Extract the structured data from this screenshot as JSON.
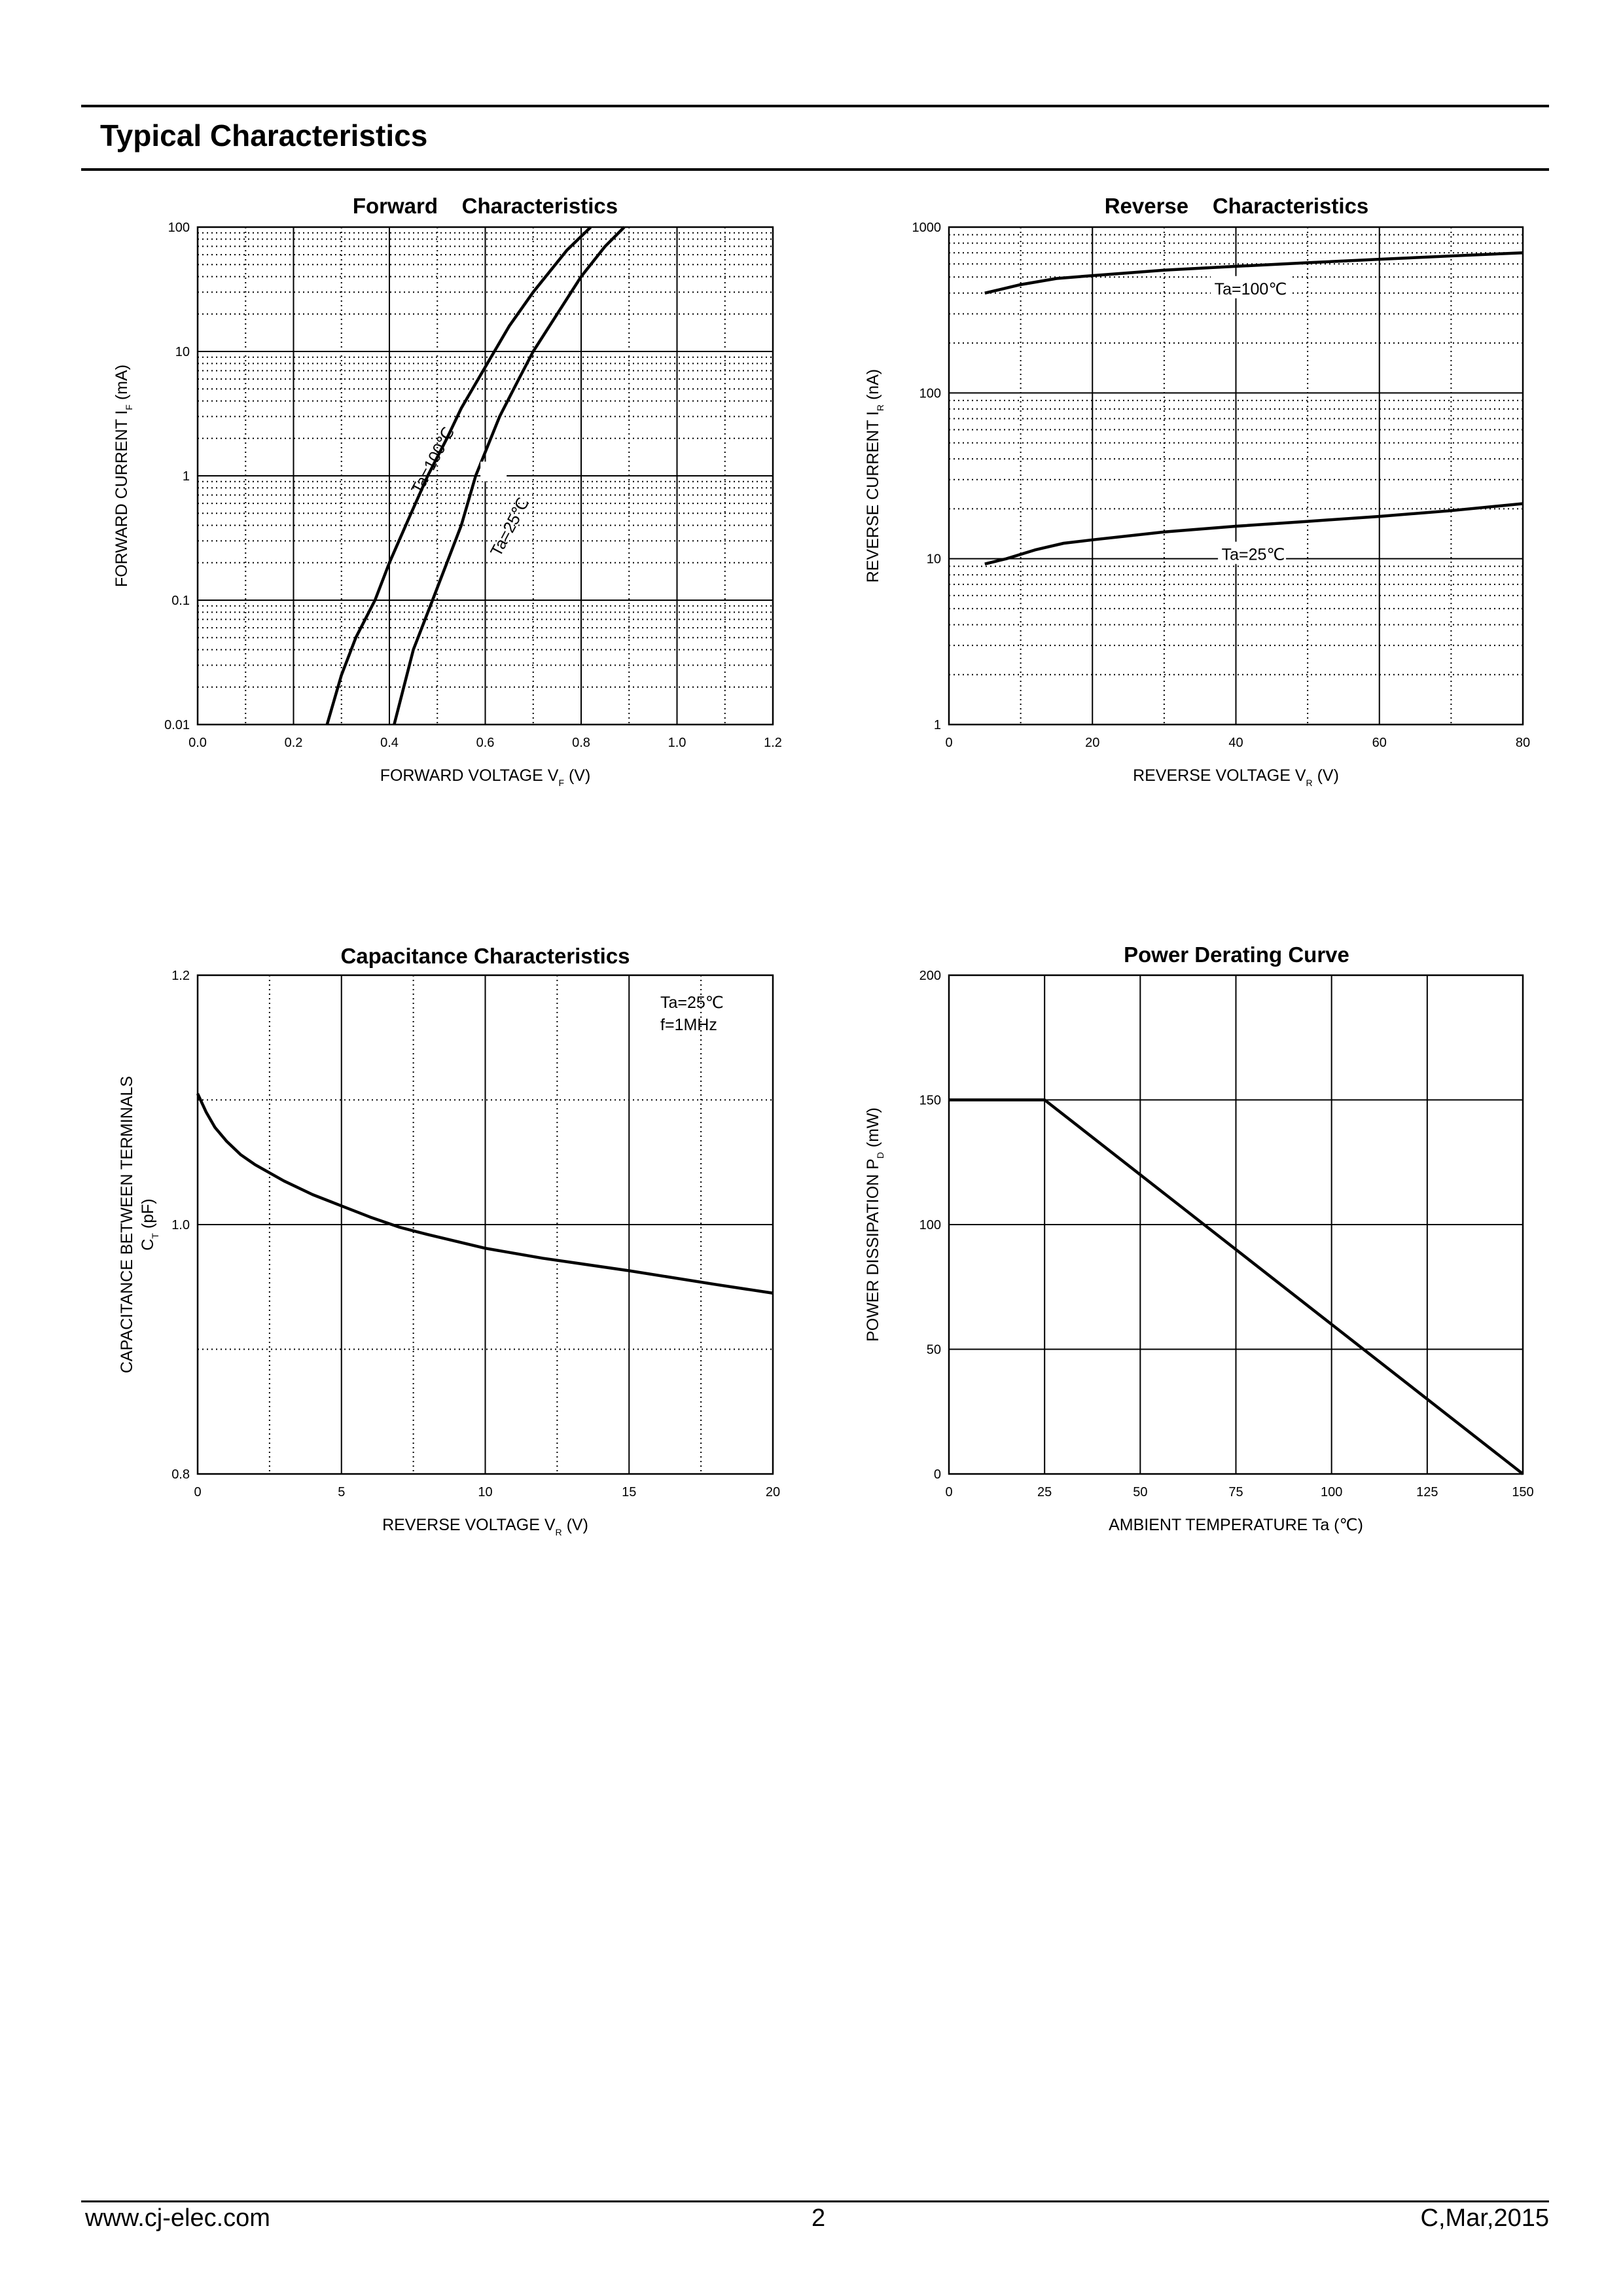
{
  "header": {
    "title": "Typical Characteristics"
  },
  "footer": {
    "website": "www.cj-elec.com",
    "page": "2",
    "revision": "C,Mar,2015"
  },
  "chart_data": [
    {
      "id": "forward",
      "type": "line",
      "title": "Forward    Characteristics",
      "xlabel": "FORWARD VOLTAGE",
      "xlabel_sym": "V",
      "xlabel_sub": "F",
      "xlabel_unit": "(V)",
      "ylabel": "FORWARD CURRENT",
      "ylabel_sym": "I",
      "ylabel_sub": "F",
      "ylabel_unit": "(mA)",
      "xlim": [
        0,
        1.2
      ],
      "ylim": [
        0.01,
        100
      ],
      "yscale": "log",
      "xticks": [
        "0.0",
        "0.2",
        "0.4",
        "0.6",
        "0.8",
        "1.0",
        "1.2"
      ],
      "yticks": [
        "0.01",
        "0.1",
        "1",
        "10",
        "100"
      ],
      "grid": true,
      "series": [
        {
          "name": "Ta=100℃",
          "x": [
            0.27,
            0.3,
            0.33,
            0.37,
            0.4,
            0.44,
            0.48,
            0.52,
            0.55,
            0.6,
            0.65,
            0.7,
            0.77,
            0.82
          ],
          "y": [
            0.01,
            0.025,
            0.05,
            0.1,
            0.2,
            0.45,
            1,
            2,
            3.5,
            7.5,
            16,
            30,
            65,
            100
          ]
        },
        {
          "name": "Ta=25℃",
          "x": [
            0.41,
            0.43,
            0.45,
            0.49,
            0.52,
            0.55,
            0.58,
            0.63,
            0.67,
            0.7,
            0.75,
            0.8,
            0.85,
            0.89
          ],
          "y": [
            0.01,
            0.02,
            0.04,
            0.1,
            0.2,
            0.4,
            1,
            3,
            6,
            10,
            20,
            40,
            70,
            100
          ]
        }
      ]
    },
    {
      "id": "reverse",
      "type": "line",
      "title": "Reverse    Characteristics",
      "xlabel": "REVERSE VOLTAGE",
      "xlabel_sym": "V",
      "xlabel_sub": "R",
      "xlabel_unit": "(V)",
      "ylabel": "REVERSE CURRENT",
      "ylabel_sym": "I",
      "ylabel_sub": "R",
      "ylabel_unit": "(nA)",
      "xlim": [
        0,
        80
      ],
      "ylim": [
        1,
        1000
      ],
      "yscale": "log",
      "xticks": [
        "0",
        "20",
        "40",
        "60",
        "80"
      ],
      "yticks": [
        "1",
        "10",
        "100",
        "1000"
      ],
      "grid": true,
      "series": [
        {
          "name": "Ta=100℃",
          "x": [
            5,
            10,
            15,
            20,
            30,
            40,
            50,
            60,
            70,
            80
          ],
          "y": [
            400,
            450,
            490,
            510,
            550,
            580,
            610,
            640,
            670,
            700
          ]
        },
        {
          "name": "Ta=25℃",
          "x": [
            5,
            8,
            12,
            16,
            20,
            30,
            40,
            50,
            60,
            70,
            80
          ],
          "y": [
            9.3,
            10,
            11.3,
            12.4,
            13,
            14.5,
            15.7,
            16.8,
            18,
            19.5,
            21.5
          ]
        }
      ]
    },
    {
      "id": "capacitance",
      "type": "line",
      "title": "Capacitance Characteristics",
      "xlabel": "REVERSE VOLTAGE",
      "xlabel_sym": "V",
      "xlabel_sub": "R",
      "xlabel_unit": "(V)",
      "ylabel": "CAPACITANCE BETWEEN TERMINALS",
      "ylabel_sym": "C",
      "ylabel_sub": "T",
      "ylabel_unit": "(pF)",
      "xlim": [
        0,
        20
      ],
      "ylim": [
        0.8,
        1.2
      ],
      "yscale": "linear",
      "xticks": [
        "0",
        "5",
        "10",
        "15",
        "20"
      ],
      "yticks": [
        "0.8",
        "1.0",
        "1.2"
      ],
      "grid": true,
      "annotations": [
        "Ta=25℃",
        "f=1MHz"
      ],
      "series": [
        {
          "name": "CT",
          "x": [
            0,
            0.3,
            0.6,
            1,
            1.5,
            2,
            3,
            4,
            5,
            6,
            7,
            8,
            10,
            12,
            15,
            18,
            20
          ],
          "y": [
            1.105,
            1.09,
            1.078,
            1.067,
            1.056,
            1.048,
            1.035,
            1.024,
            1.015,
            1.006,
            0.998,
            0.992,
            0.981,
            0.973,
            0.963,
            0.952,
            0.945
          ]
        }
      ]
    },
    {
      "id": "power",
      "type": "line",
      "title": "Power Derating Curve",
      "xlabel": "AMBIENT TEMPERATURE",
      "xlabel_sym": "Ta",
      "xlabel_sub": "",
      "xlabel_unit": "(℃)",
      "ylabel": "POWER DISSIPATION",
      "ylabel_sym": "P",
      "ylabel_sub": "D",
      "ylabel_unit": "(mW)",
      "xlim": [
        0,
        150
      ],
      "ylim": [
        0,
        200
      ],
      "yscale": "linear",
      "xticks": [
        "0",
        "25",
        "50",
        "75",
        "100",
        "125",
        "150"
      ],
      "yticks": [
        "0",
        "50",
        "100",
        "150",
        "200"
      ],
      "grid": true,
      "series": [
        {
          "name": "PD",
          "x": [
            0,
            25,
            150
          ],
          "y": [
            150,
            150,
            0
          ]
        }
      ]
    }
  ]
}
